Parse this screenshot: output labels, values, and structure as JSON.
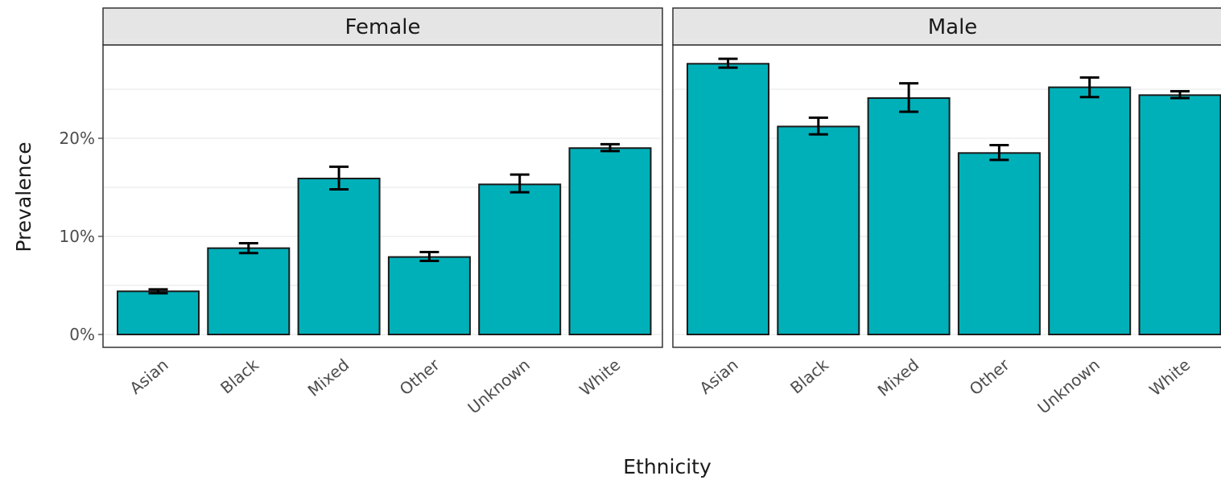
{
  "chart_data": {
    "type": "bar",
    "facets": [
      "Female",
      "Male"
    ],
    "categories": [
      "Asian",
      "Black",
      "Mixed",
      "Other",
      "Unknown",
      "White"
    ],
    "series": [
      {
        "facet": "Female",
        "values": [
          4.4,
          8.8,
          15.9,
          7.9,
          15.3,
          19.0
        ],
        "error_low": [
          4.2,
          8.3,
          14.8,
          7.5,
          14.5,
          18.7
        ],
        "error_high": [
          4.6,
          9.3,
          17.1,
          8.4,
          16.3,
          19.4
        ]
      },
      {
        "facet": "Male",
        "values": [
          27.6,
          21.2,
          24.1,
          18.5,
          25.2,
          24.4
        ],
        "error_low": [
          27.2,
          20.4,
          22.7,
          17.8,
          24.2,
          24.1
        ],
        "error_high": [
          28.1,
          22.1,
          25.6,
          19.3,
          26.2,
          24.8
        ]
      }
    ],
    "yticks": [
      0,
      10,
      20
    ],
    "ytick_labels": [
      "0%",
      "10%",
      "20%"
    ],
    "ylim": [
      0,
      30.3
    ],
    "xlabel": "Ethnicity",
    "ylabel": "Prevalence",
    "bar_color": "#00b0b9",
    "grid": true
  }
}
